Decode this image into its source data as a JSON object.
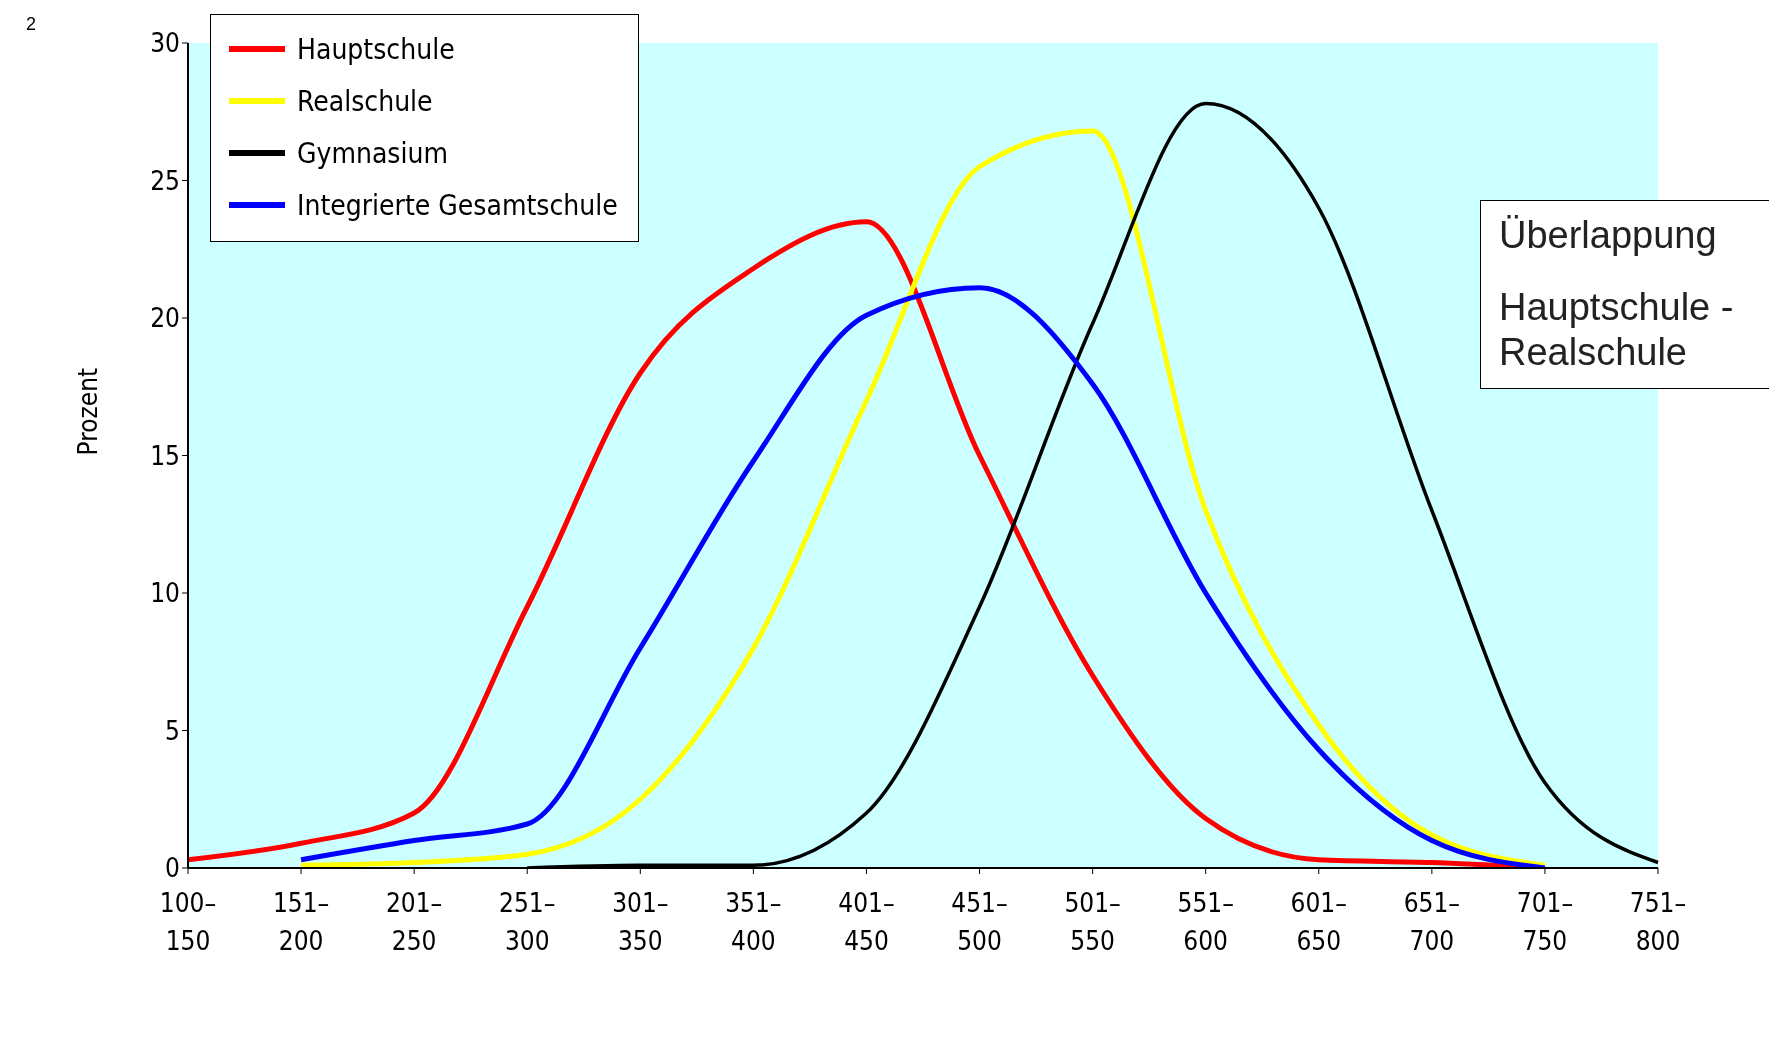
{
  "chart_data": {
    "type": "line",
    "ylabel": "Prozent",
    "categories": [
      "100–150",
      "151–200",
      "201–250",
      "251–300",
      "301–350",
      "351–400",
      "401–450",
      "451–500",
      "501–550",
      "551–600",
      "601–650",
      "651–700",
      "701–750",
      "751–800"
    ],
    "series": [
      {
        "name": "Hauptschule",
        "color": "#ff0000",
        "values": [
          0.3,
          0.9,
          2.0,
          9.5,
          18,
          21.8,
          23.5,
          15,
          7,
          1.8,
          0.3,
          0.2,
          0,
          null
        ]
      },
      {
        "name": "Realschule",
        "color": "#ffff00",
        "values": [
          null,
          0.1,
          0.2,
          0.5,
          2.5,
          8,
          17,
          25.5,
          26.8,
          13,
          5.2,
          1.2,
          0.1,
          null
        ]
      },
      {
        "name": "Gymnasium",
        "color": "#000000",
        "values": [
          null,
          null,
          null,
          0,
          0.1,
          0.1,
          2,
          9.5,
          19.8,
          27.8,
          24,
          13,
          3.1,
          0.2
        ]
      },
      {
        "name": "Integrierte Gesamtschule",
        "color": "#0000ff",
        "values": [
          null,
          0.3,
          1.0,
          1.6,
          8,
          14.8,
          20.1,
          21.1,
          17.6,
          10,
          4.3,
          1.0,
          0,
          null
        ]
      }
    ],
    "ylim": [
      0,
      30
    ],
    "yticks": [
      0,
      5,
      10,
      15,
      20,
      25,
      30
    ],
    "grid": false,
    "legend": "top left",
    "marker": "none",
    "line_style": "solid",
    "annotations": [
      "2",
      "Überlappung",
      "Hauptschule - Realschule"
    ]
  }
}
